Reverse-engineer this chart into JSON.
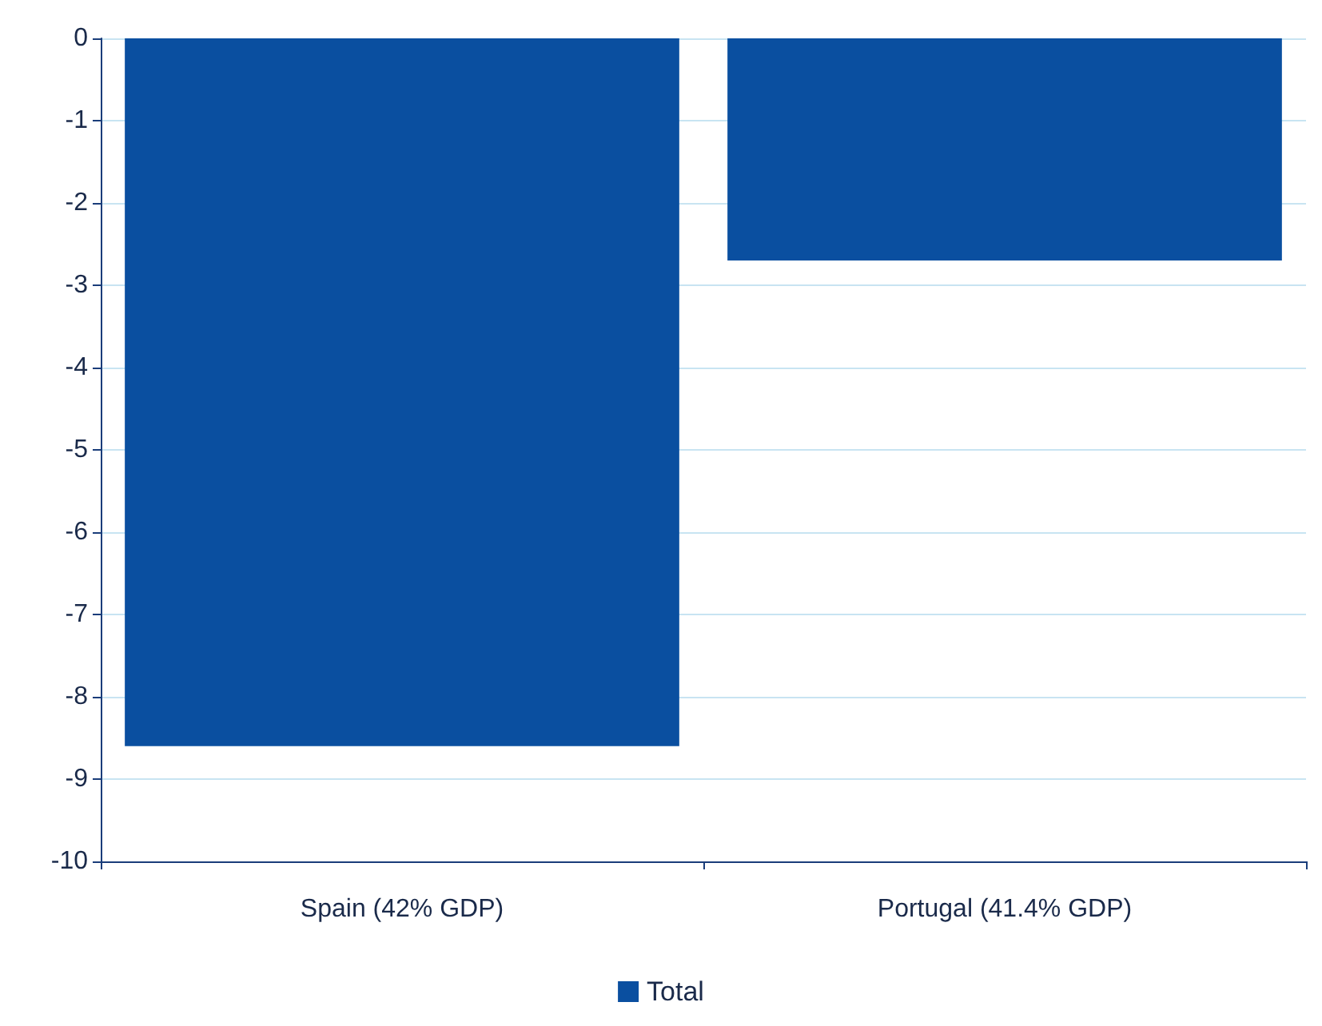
{
  "chart_data": {
    "type": "bar",
    "categories": [
      "Spain (42% GDP)",
      "Portugal (41.4% GDP)"
    ],
    "series": [
      {
        "name": "Total",
        "color": "#0a4fa0",
        "values": [
          -8.6,
          -2.7
        ]
      }
    ],
    "ylim": [
      -10,
      0
    ],
    "yticks": [
      -10,
      -9,
      -8,
      -7,
      -6,
      -5,
      -4,
      -3,
      -2,
      -1,
      0
    ],
    "grid": "y",
    "legend": "bottom"
  }
}
